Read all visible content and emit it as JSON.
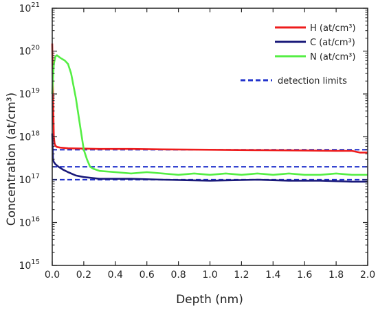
{
  "chart_data": {
    "type": "line",
    "xlabel": "Depth (nm)",
    "ylabel": "Concentration (at/cm³)",
    "xlim": [
      0,
      2.0
    ],
    "ylim": [
      1000000000000000.0,
      1e+21
    ],
    "yscale": "log",
    "x_ticks": [
      "0.0",
      "0.2",
      "0.4",
      "0.6",
      "0.8",
      "1.0",
      "1.2",
      "1.4",
      "1.6",
      "1.8",
      "2.0"
    ],
    "y_ticks": [
      {
        "base": "10",
        "exp": "15"
      },
      {
        "base": "10",
        "exp": "16"
      },
      {
        "base": "10",
        "exp": "17"
      },
      {
        "base": "10",
        "exp": "18"
      },
      {
        "base": "10",
        "exp": "19"
      },
      {
        "base": "10",
        "exp": "20"
      },
      {
        "base": "10",
        "exp": "21"
      }
    ],
    "legend_position": "top-right",
    "series": [
      {
        "name": "H (at/cm³)",
        "color": "#ee1c1c",
        "x": [
          0.0,
          0.005,
          0.01,
          0.015,
          0.02,
          0.03,
          0.05,
          0.1,
          0.2,
          0.3,
          0.5,
          0.7,
          1.0,
          1.3,
          1.6,
          1.8,
          1.9,
          1.95,
          2.0
        ],
        "y": [
          1.5e+20,
          1e+19,
          1e+18,
          7e+17,
          6.2e+17,
          5.8e+17,
          5.6e+17,
          5.4e+17,
          5.3e+17,
          5.2e+17,
          5.2e+17,
          5.1e+17,
          5e+17,
          4.9e+17,
          4.8e+17,
          4.7e+17,
          4.7e+17,
          4.3e+17,
          4.3e+17
        ]
      },
      {
        "name": "C (at/cm³)",
        "color": "#1a1a7a",
        "x": [
          0.0,
          0.005,
          0.01,
          0.02,
          0.04,
          0.07,
          0.1,
          0.15,
          0.2,
          0.25,
          0.3,
          0.5,
          0.7,
          1.0,
          1.3,
          1.5,
          1.7,
          1.9,
          2.0
        ],
        "y": [
          1.2e+18,
          3e+17,
          2.6e+17,
          2.3e+17,
          2e+17,
          1.7e+17,
          1.5e+17,
          1.25e+17,
          1.15e+17,
          1.1e+17,
          1.05e+17,
          1.05e+17,
          1e+17,
          9.5e+16,
          1e+17,
          9.5e+16,
          9.5e+16,
          9e+16,
          9e+16
        ]
      },
      {
        "name": "N (at/cm³)",
        "color": "#55ee44",
        "x": [
          0.0,
          0.01,
          0.02,
          0.03,
          0.05,
          0.08,
          0.1,
          0.12,
          0.15,
          0.18,
          0.2,
          0.22,
          0.24,
          0.26,
          0.3,
          0.4,
          0.5,
          0.6,
          0.7,
          0.8,
          0.9,
          1.0,
          1.1,
          1.2,
          1.3,
          1.4,
          1.5,
          1.6,
          1.7,
          1.8,
          1.9,
          2.0
        ],
        "y": [
          1e+19,
          5e+19,
          7.5e+19,
          8e+19,
          7e+19,
          6e+19,
          5e+19,
          3e+19,
          8e+18,
          1.5e+18,
          5e+17,
          3e+17,
          2e+17,
          1.8e+17,
          1.6e+17,
          1.5e+17,
          1.4e+17,
          1.5e+17,
          1.4e+17,
          1.3e+17,
          1.4e+17,
          1.3e+17,
          1.4e+17,
          1.3e+17,
          1.4e+17,
          1.3e+17,
          1.4e+17,
          1.3e+17,
          1.3e+17,
          1.4e+17,
          1.3e+17,
          1.3e+17
        ]
      }
    ],
    "detection_limits": {
      "name": "detection limits",
      "color": "#2233cc",
      "values": [
        5e+17,
        2e+17,
        1e+17
      ]
    }
  }
}
